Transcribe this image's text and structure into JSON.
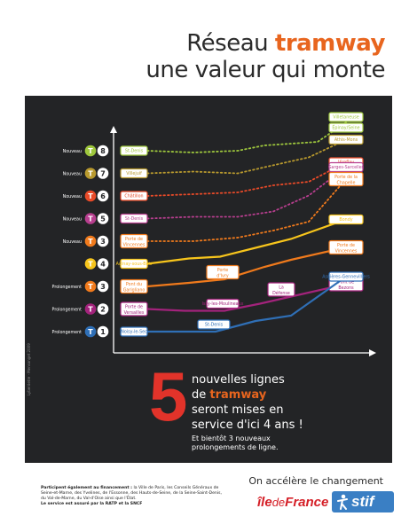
{
  "header": {
    "title_pre": "Réseau ",
    "title_highlight": "tramway",
    "subtitle": "une valeur qui monte"
  },
  "colors": {
    "orange": "#e8651e",
    "red": "#e2332a",
    "dark": "#232426",
    "stif_blue": "#3a7fc4"
  },
  "lines": [
    {
      "tag": "Nouveau",
      "code": "T8",
      "color": "#9ec73d",
      "start": "St-Denis",
      "ends": [
        "Épinay/Seine",
        "Villetaneuse"
      ]
    },
    {
      "tag": "Nouveau",
      "code": "T7",
      "color": "#b99a2e",
      "start": "Villejuif",
      "ends": [
        "Athis-Mons"
      ]
    },
    {
      "tag": "Nouveau",
      "code": "T6",
      "color": "#e84a28",
      "start": "Châtillon",
      "ends": [
        "Viroflay"
      ]
    },
    {
      "tag": "Nouveau",
      "code": "T5",
      "color": "#b73e8e",
      "start": "St-Denis",
      "ends": [
        "Garges-Sarcelles"
      ]
    },
    {
      "tag": "Nouveau",
      "code": "T3",
      "color": "#f07a1c",
      "start": "Porte de Vincennes",
      "ends": [
        "Porte de la Chapelle"
      ]
    },
    {
      "tag": "",
      "code": "T4",
      "color": "#f7c51c",
      "start": "Aulnay-sous-Bois",
      "ends": [
        "Bondy"
      ]
    },
    {
      "tag": "Prolongement",
      "code": "T3",
      "color": "#f07a1c",
      "start": "Pont du Garigliano",
      "mid": "Porte d'Ivry",
      "ends": [
        "Porte de Vincennes"
      ]
    },
    {
      "tag": "Prolongement",
      "code": "T2",
      "color": "#a3237c",
      "start": "Porte de Versailles",
      "mid": "Issy-les-Moulineaux",
      "mid2": "La Défense",
      "ends": [
        "Pont de Bezons"
      ]
    },
    {
      "tag": "Prolongement",
      "code": "T1",
      "color": "#2f6fb6",
      "start": "Noisy-le-Sec",
      "mid": "St-Denis",
      "ends": [
        "Asnières-Gennevilliers"
      ]
    }
  ],
  "message": {
    "number": "5",
    "line1": "nouvelles lignes",
    "line2_pre": "de ",
    "line2_hl": "tramway",
    "line3": "seront mises en",
    "line4": "service d'ici 4 ans !",
    "sub1": "Et bientôt 3 nouveaux",
    "sub2": "prolongements de ligne."
  },
  "vertical_credit": "Lyberdetre · Mensonget 2009",
  "footer": {
    "tagline": "On accélère le changement",
    "credits_bold": "Participent également au financement :",
    "credits_text": "la Ville de Paris, les Conseils Généraux de Seine-et-Marne, des Yvelines, de l'Essonne, des Hauts-de-Seine, de la Seine-Saint-Denis, du Val-de-Marne, du Val-d'Oise ainsi que l'État.",
    "credits_bold2": "Le service est assuré par la RATP et la SNCF",
    "idf_a": "île",
    "idf_b": "de",
    "idf_c": "France",
    "stif": "stif"
  }
}
